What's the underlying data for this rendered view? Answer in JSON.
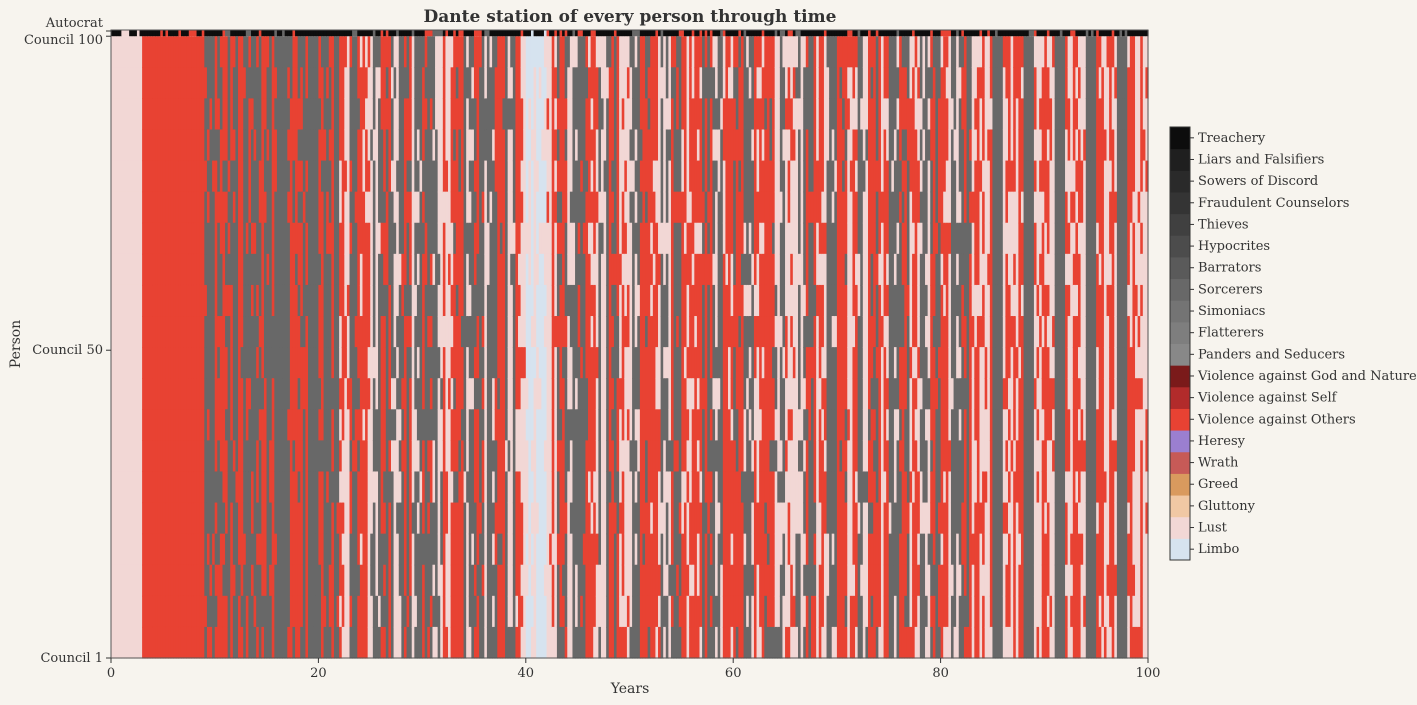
{
  "chart_data": {
    "type": "heatmap",
    "title": "Dante station of every person through time",
    "xlabel": "Years",
    "ylabel": "Person",
    "xlim": [
      0,
      100
    ],
    "x_ticks": [
      "0",
      "20",
      "40",
      "60",
      "80",
      "100"
    ],
    "y_ticks": [
      "Council 1",
      "Council 50",
      "Council 100",
      "Autocrat"
    ],
    "rows": "Council 1 … Council 100, Autocrat",
    "legend": "colorbar-right",
    "stations": [
      {
        "name": "Limbo",
        "color": "#d6e3ef"
      },
      {
        "name": "Lust",
        "color": "#f2d7d5"
      },
      {
        "name": "Gluttony",
        "color": "#f0c8a4"
      },
      {
        "name": "Greed",
        "color": "#d99a5e"
      },
      {
        "name": "Wrath",
        "color": "#c75a57"
      },
      {
        "name": "Heresy",
        "color": "#9b7fd0"
      },
      {
        "name": "Violence against Others",
        "color": "#e84233"
      },
      {
        "name": "Violence against Self",
        "color": "#b22b2b"
      },
      {
        "name": "Violence against God and Nature",
        "color": "#7a1a1a"
      },
      {
        "name": "Panders and Seducers",
        "color": "#888888"
      },
      {
        "name": "Flatterers",
        "color": "#7e7e7e"
      },
      {
        "name": "Simoniacs",
        "color": "#747474"
      },
      {
        "name": "Sorcerers",
        "color": "#686868"
      },
      {
        "name": "Barrators",
        "color": "#5a5a5a"
      },
      {
        "name": "Hypocrites",
        "color": "#4c4c4c"
      },
      {
        "name": "Thieves",
        "color": "#404040"
      },
      {
        "name": "Fraudulent Counselors",
        "color": "#343434"
      },
      {
        "name": "Sowers of Discord",
        "color": "#2a2a2a"
      },
      {
        "name": "Liars and Falsifiers",
        "color": "#1f1f1f"
      },
      {
        "name": "Treachery",
        "color": "#0d0d0d"
      }
    ],
    "dominant_station_by_year": [
      1,
      1,
      1,
      6,
      6,
      6,
      6,
      6,
      6,
      12,
      6,
      12,
      6,
      12,
      6,
      12,
      12,
      6,
      12,
      12,
      6,
      12,
      6,
      12,
      6,
      12,
      6,
      12,
      6,
      12,
      6,
      12,
      6,
      6,
      12,
      6,
      12,
      6,
      12,
      6,
      0,
      0,
      6,
      6,
      12,
      6,
      6,
      12,
      6,
      6,
      12,
      6,
      6,
      12,
      6,
      6,
      6,
      6,
      12,
      6,
      6,
      12,
      6,
      6,
      12,
      6,
      12,
      6,
      6,
      12,
      6,
      6,
      12,
      6,
      6,
      12,
      6,
      6,
      12,
      6,
      6,
      12,
      6,
      6,
      6,
      12,
      6,
      6,
      12,
      6,
      6,
      12,
      6,
      6,
      12,
      6,
      6,
      12,
      6,
      6
    ],
    "secondary_station_by_year": [
      1,
      1,
      1,
      6,
      6,
      6,
      6,
      6,
      6,
      6,
      12,
      6,
      12,
      6,
      12,
      6,
      12,
      12,
      6,
      12,
      12,
      6,
      1,
      6,
      1,
      1,
      12,
      1,
      12,
      1,
      12,
      1,
      1,
      12,
      1,
      12,
      1,
      12,
      1,
      1,
      1,
      1,
      1,
      12,
      1,
      12,
      1,
      1,
      12,
      1,
      1,
      12,
      1,
      1,
      12,
      1,
      1,
      12,
      1,
      1,
      12,
      1,
      1,
      12,
      1,
      1,
      1,
      12,
      1,
      1,
      12,
      1,
      1,
      12,
      1,
      1,
      12,
      1,
      1,
      12,
      1,
      1,
      12,
      1,
      1,
      12,
      1,
      1,
      12,
      1,
      1,
      12,
      1,
      1,
      12,
      1,
      1,
      12,
      1,
      1
    ],
    "autocrat_station": 19
  }
}
